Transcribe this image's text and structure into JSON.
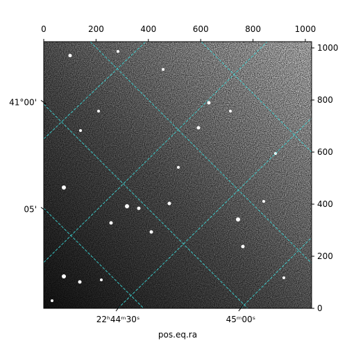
{
  "chart_data": {
    "type": "image",
    "xlabel": "pos.eq.ra",
    "xlim": [
      0,
      1024
    ],
    "ylim": [
      0,
      1024
    ],
    "xticks": [
      0,
      200,
      400,
      600,
      800,
      1000
    ],
    "yticks": [
      0,
      200,
      400,
      600,
      800,
      1000
    ],
    "wcs_xticks": [
      {
        "value": 284,
        "label": "22ʰ44ᵐ30ˢ"
      },
      {
        "value": 753,
        "label": "45ᵐ00ˢ"
      }
    ],
    "wcs_yticks": [
      {
        "value": 791,
        "label": "41°00'"
      },
      {
        "value": 380,
        "label": "05'"
      }
    ],
    "grid_color": "#3ee0e0"
  }
}
